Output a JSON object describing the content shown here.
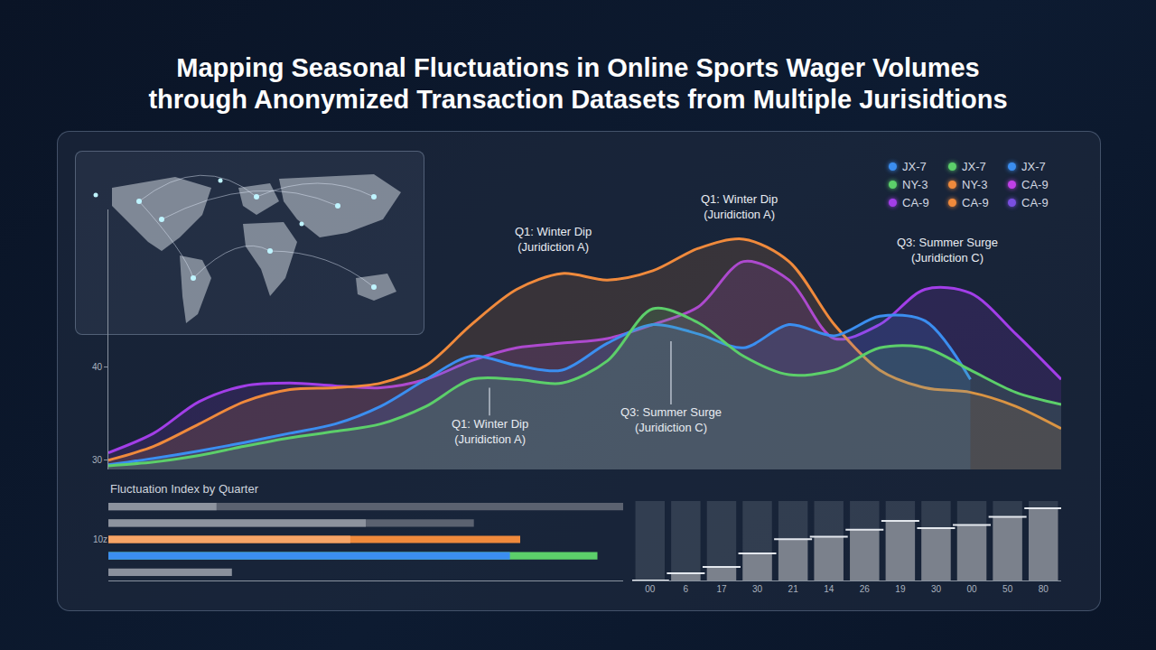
{
  "chart_data": [
    {
      "type": "area",
      "title": "Mapping Seasonal Fluctuations in Online Sports Wager Volumes\nthrough Anonymized Transaction Datasets from Multiple Jurisidtions",
      "categories": [
        null,
        null,
        null,
        null,
        null,
        null,
        null,
        null,
        null,
        null,
        null,
        null,
        null,
        null,
        null,
        null,
        null,
        null,
        null,
        null,
        null,
        null
      ],
      "series": [
        {
          "color": "#a23ee8",
          "values": [
            30.8,
            32.9,
            36.3,
            38.0,
            38.3,
            38.0,
            37.8,
            38.7,
            40.7,
            42.1,
            42.6,
            43.1,
            44.6,
            46.5,
            51.4,
            49.4,
            43.1,
            44.6,
            48.4,
            48.0,
            43.6,
            38.7
          ]
        },
        {
          "color": "#f08a3c",
          "values": [
            30.0,
            31.5,
            33.9,
            36.3,
            37.6,
            37.8,
            38.3,
            40.2,
            44.6,
            48.4,
            50.1,
            49.4,
            50.4,
            52.8,
            53.8,
            51.4,
            44.6,
            39.7,
            37.8,
            37.3,
            35.8,
            33.4
          ]
        },
        {
          "color": "#3b8ef0",
          "values": [
            29.5,
            30.2,
            31.0,
            31.9,
            32.9,
            33.9,
            35.8,
            38.7,
            41.2,
            40.2,
            39.7,
            42.6,
            44.6,
            43.6,
            42.1,
            44.6,
            43.4,
            45.5,
            45.0,
            38.7,
            null,
            null
          ]
        },
        {
          "color": "#5ccf6a",
          "values": [
            29.4,
            29.8,
            30.5,
            31.5,
            32.4,
            33.1,
            33.9,
            35.8,
            38.7,
            38.7,
            38.3,
            40.7,
            46.3,
            44.8,
            41.2,
            39.2,
            39.7,
            42.1,
            42.1,
            39.7,
            37.3,
            36.0
          ]
        }
      ],
      "ylim": [
        29,
        57
      ],
      "yticks": [
        30,
        40
      ],
      "grid": false,
      "tick_labels": "y",
      "legend": "top-right",
      "legend_items": [
        {
          "name": "JX-7",
          "color": "#3b8ef0"
        },
        {
          "name": "JX-7",
          "color": "#5ccf6a"
        },
        {
          "name": "JX-7",
          "color": "#3b8ef0"
        },
        {
          "name": "NY-3",
          "color": "#5ccf6a"
        },
        {
          "name": "NY-3",
          "color": "#f08a3c"
        },
        {
          "name": "CA-9",
          "color": "#c040e8"
        },
        {
          "name": "CA-9",
          "color": "#a23ee8"
        },
        {
          "name": "CA-9",
          "color": "#f08a3c"
        },
        {
          "name": "CA-9",
          "color": "#7a4fe0"
        }
      ],
      "annotations": [
        {
          "text": "Q1: Winter Dip\n(Juridiction A)",
          "x": 9.8,
          "y": 52.0
        },
        {
          "text": "Q1: Winter Dip\n(Juridiction A)",
          "x": 13.9,
          "y": 55.5
        },
        {
          "text": "Q3: Summer Surge\n(Juridiction C)",
          "x": 18.5,
          "y": 50.9
        },
        {
          "text": "Q1: Winter Dip\n(Juridiction A)",
          "x": 8.4,
          "y": 37.8,
          "label_y": 33.1
        },
        {
          "text": "Q3: Summer Surge\n(Juridiction C)",
          "x": 12.4,
          "y": 42.8,
          "label_y": 34.3
        }
      ]
    },
    {
      "type": "bar",
      "title": "Fluctuation Index by Quarter",
      "orientation": "horizontal",
      "categories": [
        null,
        null,
        "10z",
        null,
        null
      ],
      "series": [
        {
          "colors": [
            "#5b6270",
            "#5b6270",
            "#f08a3c",
            "#5ccf6a",
            "#8a909c"
          ],
          "values": [
            100,
            71,
            80,
            95,
            24
          ]
        },
        {
          "colors": [
            "#8d939e",
            "#8d939e",
            "#f7a567",
            "#3b8ef0",
            "#8d939e"
          ],
          "values": [
            21,
            50,
            47,
            78,
            null
          ]
        }
      ],
      "xlim": [
        0,
        100
      ],
      "xticks": [],
      "tick_labels": "y",
      "grid": false
    },
    {
      "type": "bar",
      "categories": [
        "00",
        "6",
        "17",
        "30",
        "21",
        "14",
        "26",
        "19",
        "30",
        "00",
        "50",
        "80"
      ],
      "values": [
        0,
        9,
        17,
        34,
        52,
        55,
        64,
        75,
        66,
        70,
        80,
        91
      ],
      "color": "#7b818c",
      "ylim": [
        0,
        100
      ],
      "yticks": [],
      "tick_labels": "x",
      "grid": false
    }
  ]
}
